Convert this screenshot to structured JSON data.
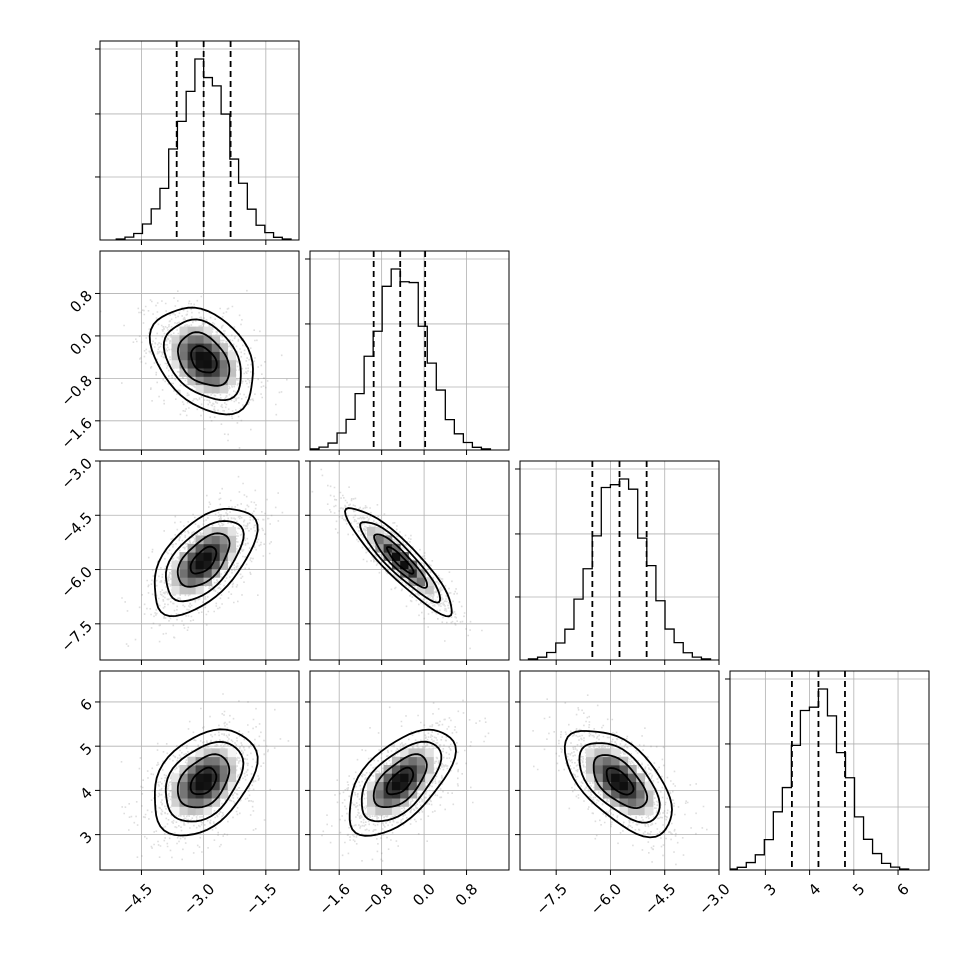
{
  "chart_data": {
    "type": "corner",
    "parameters": [
      {
        "index": 0,
        "range": [
          -5.5,
          -0.7
        ],
        "ticks": [
          -4.5,
          -3.0,
          -1.5
        ],
        "tick_labels": [
          "−4.5",
          "−3.0",
          "−1.5"
        ],
        "quantiles": [
          -3.65,
          -3.0,
          -2.35
        ],
        "mean": -3.0,
        "std": 0.62
      },
      {
        "index": 1,
        "range": [
          -2.15,
          1.6
        ],
        "ticks": [
          -1.6,
          -0.8,
          0.0,
          0.8
        ],
        "tick_labels": [
          "−1.6",
          "−0.8",
          "0.0",
          "0.8"
        ],
        "quantiles": [
          -0.95,
          -0.45,
          0.02
        ],
        "mean": -0.45,
        "std": 0.5
      },
      {
        "index": 2,
        "range": [
          -8.5,
          -3.0
        ],
        "ticks": [
          -7.5,
          -6.0,
          -4.5,
          -3.0
        ],
        "tick_labels": [
          "−7.5",
          "−6.0",
          "−4.5",
          "−3.0"
        ],
        "quantiles": [
          -6.5,
          -5.75,
          -5.0
        ],
        "mean": -5.75,
        "std": 0.74
      },
      {
        "index": 3,
        "range": [
          2.2,
          6.7
        ],
        "ticks": [
          3,
          4,
          5,
          6
        ],
        "tick_labels": [
          "3",
          "4",
          "5",
          "6"
        ],
        "quantiles": [
          3.6,
          4.2,
          4.8
        ],
        "mean": 4.2,
        "std": 0.6
      }
    ],
    "correlations": [
      [
        0,
        1,
        -0.35
      ],
      [
        0,
        2,
        0.55
      ],
      [
        1,
        2,
        -0.9
      ],
      [
        0,
        3,
        0.38
      ],
      [
        1,
        3,
        0.58
      ],
      [
        2,
        3,
        -0.58
      ]
    ],
    "contour_levels_sigma": [
      0.5,
      1.0,
      1.5,
      2.0
    ],
    "histogram_bins": 20,
    "diag_ytick_fractions": [
      0.33,
      0.66,
      1.0
    ],
    "grid": true,
    "title": "",
    "xlabel": "",
    "ylabel": ""
  }
}
